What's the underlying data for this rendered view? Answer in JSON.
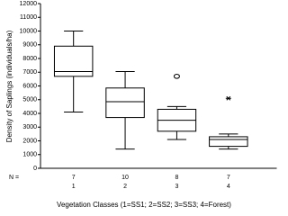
{
  "chart_data": {
    "type": "box",
    "y_label": "Density of Saplings (individuals/ha)",
    "x_label": "Vegetation Classes (1=SS1; 2=SS2; 3=SS3; 4=Forest)",
    "categories": [
      "1",
      "2",
      "3",
      "4"
    ],
    "n_label": "N =",
    "n": [
      7,
      10,
      8,
      7
    ],
    "boxes": [
      {
        "min": 4100,
        "q1": 6700,
        "median": 7050,
        "q3": 8900,
        "max": 10000,
        "outliers": []
      },
      {
        "min": 1400,
        "q1": 3700,
        "median": 4850,
        "q3": 5850,
        "max": 7050,
        "outliers": []
      },
      {
        "min": 2100,
        "q1": 2700,
        "median": 3500,
        "q3": 4300,
        "max": 4500,
        "outliers": [
          6700
        ],
        "outlier_marker": "circle"
      },
      {
        "min": 1400,
        "q1": 1600,
        "median": 2100,
        "q3": 2300,
        "max": 2500,
        "outliers": [
          5100
        ],
        "outlier_marker": "asterisk"
      }
    ],
    "color": "#000000",
    "ylim": [
      0,
      12000
    ],
    "yticks": [
      0,
      1000,
      2000,
      3000,
      4000,
      5000,
      6000,
      7000,
      8000,
      9000,
      10000,
      11000,
      12000
    ]
  }
}
